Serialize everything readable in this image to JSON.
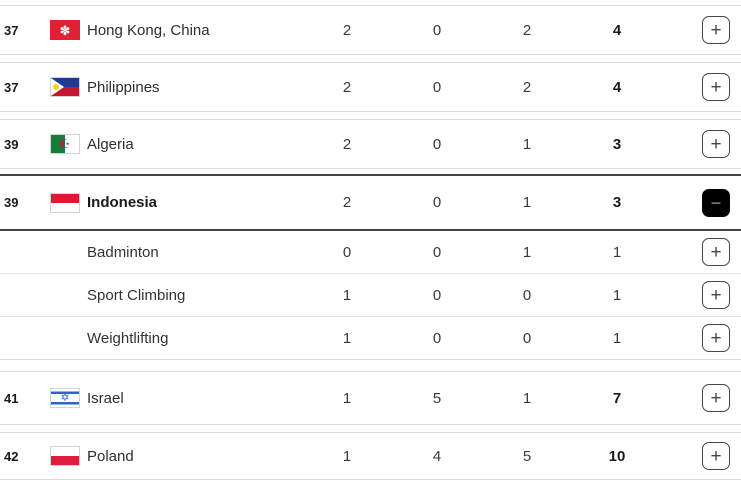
{
  "icons": {
    "expand": "+",
    "collapse": "−"
  },
  "colors": {
    "row_border": "#dcdcdc",
    "expanded_row_border": "#454545",
    "text": "#333333",
    "rank_text": "#1a1a1a",
    "button_border": "#454545",
    "collapse_button_bg": "#000000",
    "flag_hk_red": "#de2133",
    "flag_ph_blue": "#1c3b94",
    "flag_ph_red": "#c51630",
    "flag_ph_sun": "#fcd116",
    "flag_dz_green": "#1a7a3c",
    "flag_dz_red": "#d21034",
    "flag_id_red": "#e01932",
    "flag_il_blue": "#2a66c8",
    "flag_pl_red": "#e01a3c"
  },
  "table": {
    "rows": [
      {
        "rank": "37",
        "country": "Hong Kong, China",
        "flag": "hong-kong-china",
        "gold": "2",
        "silver": "0",
        "bronze": "2",
        "total": "4",
        "expanded": false
      },
      {
        "rank": "37",
        "country": "Philippines",
        "flag": "philippines",
        "gold": "2",
        "silver": "0",
        "bronze": "2",
        "total": "4",
        "expanded": false
      },
      {
        "rank": "39",
        "country": "Algeria",
        "flag": "algeria",
        "gold": "2",
        "silver": "0",
        "bronze": "1",
        "total": "3",
        "expanded": false
      },
      {
        "rank": "39",
        "country": "Indonesia",
        "flag": "indonesia",
        "gold": "2",
        "silver": "0",
        "bronze": "1",
        "total": "3",
        "expanded": true,
        "sub_rows": [
          {
            "discipline": "Badminton",
            "gold": "0",
            "silver": "0",
            "bronze": "1",
            "total": "1"
          },
          {
            "discipline": "Sport Climbing",
            "gold": "1",
            "silver": "0",
            "bronze": "0",
            "total": "1"
          },
          {
            "discipline": "Weightlifting",
            "gold": "1",
            "silver": "0",
            "bronze": "0",
            "total": "1"
          }
        ]
      },
      {
        "rank": "41",
        "country": "Israel",
        "flag": "israel",
        "gold": "1",
        "silver": "5",
        "bronze": "1",
        "total": "7",
        "expanded": false
      },
      {
        "rank": "42",
        "country": "Poland",
        "flag": "poland",
        "gold": "1",
        "silver": "4",
        "bronze": "5",
        "total": "10",
        "expanded": false
      }
    ]
  }
}
